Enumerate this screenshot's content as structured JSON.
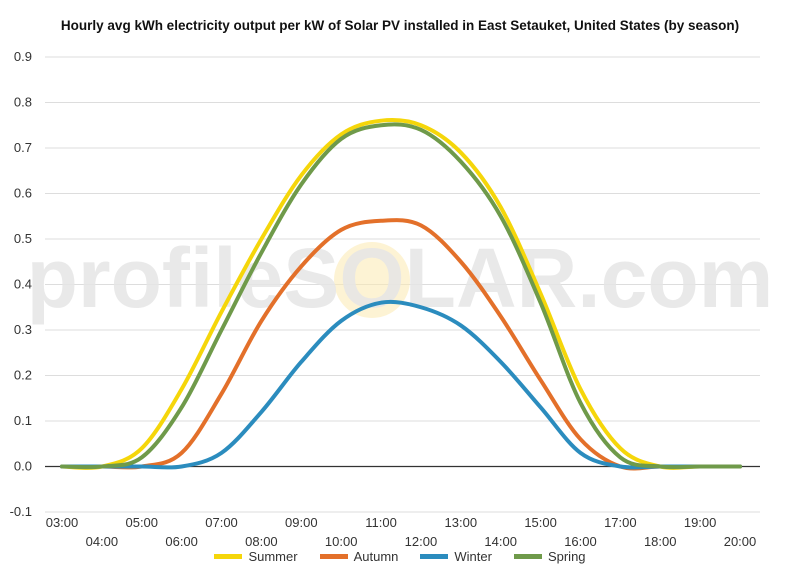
{
  "chart_data": {
    "type": "line",
    "title": "Hourly avg kWh electricity output per kW of Solar PV installed in East Setauket, United States (by season)",
    "watermark": "profileSOLAR.com",
    "x": [
      "03:00",
      "04:00",
      "05:00",
      "06:00",
      "07:00",
      "08:00",
      "09:00",
      "10:00",
      "11:00",
      "12:00",
      "13:00",
      "14:00",
      "15:00",
      "16:00",
      "17:00",
      "18:00",
      "19:00",
      "20:00"
    ],
    "ylim": [
      -0.1,
      0.9
    ],
    "yticks": [
      "-0.1",
      "0.0",
      "0.1",
      "0.2",
      "0.3",
      "0.4",
      "0.5",
      "0.6",
      "0.7",
      "0.8",
      "0.9"
    ],
    "grid": true,
    "legend_position": "bottom",
    "series": [
      {
        "name": "Summer",
        "color": "#f5d60a",
        "values": [
          0.0,
          0.0,
          0.04,
          0.17,
          0.34,
          0.5,
          0.64,
          0.73,
          0.76,
          0.75,
          0.69,
          0.57,
          0.38,
          0.17,
          0.04,
          0.0,
          0.0,
          0.0
        ]
      },
      {
        "name": "Autumn",
        "color": "#e3702a",
        "values": [
          0.0,
          0.0,
          0.0,
          0.03,
          0.16,
          0.32,
          0.44,
          0.52,
          0.54,
          0.53,
          0.45,
          0.33,
          0.19,
          0.06,
          0.0,
          0.0,
          0.0,
          0.0
        ]
      },
      {
        "name": "Winter",
        "color": "#2b8cbe",
        "values": [
          0.0,
          0.0,
          0.0,
          0.0,
          0.03,
          0.12,
          0.23,
          0.32,
          0.36,
          0.35,
          0.31,
          0.23,
          0.13,
          0.03,
          0.0,
          0.0,
          0.0,
          0.0
        ]
      },
      {
        "name": "Spring",
        "color": "#6f9a4a",
        "values": [
          0.0,
          0.0,
          0.02,
          0.13,
          0.3,
          0.47,
          0.62,
          0.72,
          0.75,
          0.74,
          0.67,
          0.55,
          0.36,
          0.14,
          0.02,
          0.0,
          0.0,
          0.0
        ]
      }
    ]
  }
}
